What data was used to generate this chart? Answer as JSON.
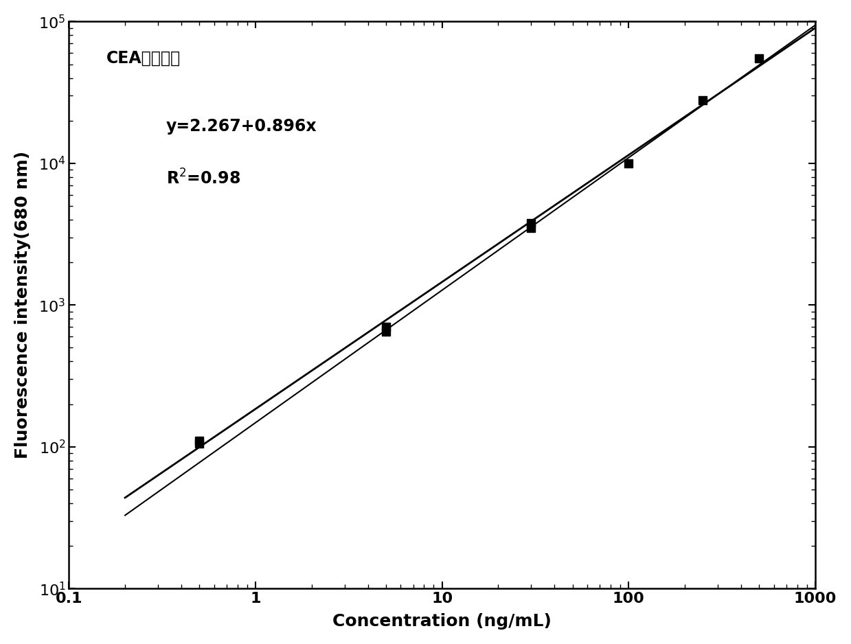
{
  "title": "CEA标准曲线",
  "xlabel": "Concentration （ng/mL）",
  "ylabel": "Fluorescence intensity(680 nm)",
  "equation": "y=2.267+0.896x",
  "r_squared": "R$^2$=0.98",
  "data_x": [
    0.5,
    0.5,
    5.0,
    5.0,
    30.0,
    30.0,
    100.0,
    250.0,
    500.0
  ],
  "data_y": [
    110,
    105,
    650,
    700,
    3500,
    3800,
    10000,
    28000,
    55000
  ],
  "xlim": [
    0.2,
    1000
  ],
  "ylim": [
    10,
    100000.0
  ],
  "line1_intercept": 2.267,
  "line1_slope": 0.896,
  "line2_intercept": 2.17,
  "line2_slope": 0.935,
  "bg_color": "#ffffff",
  "line_color": "#000000",
  "marker_color": "#000000",
  "marker_size": 8,
  "title_fontsize": 17,
  "label_fontsize": 18,
  "tick_fontsize": 16,
  "annot_fontsize": 17
}
